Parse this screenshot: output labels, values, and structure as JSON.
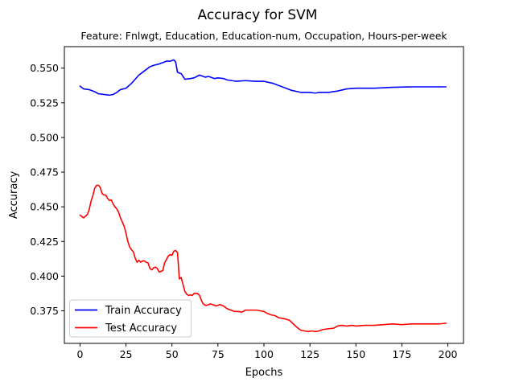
{
  "chart_data": {
    "type": "line",
    "title": "Accuracy for SVM",
    "subtitle": "Feature: Fnlwgt, Education, Education-num, Occupation, Hours-per-week",
    "xlabel": "Epochs",
    "ylabel": "Accuracy",
    "xlim": [
      -8.5,
      208.5
    ],
    "ylim": [
      0.3515,
      0.5655
    ],
    "xticks": [
      0,
      25,
      50,
      75,
      100,
      125,
      150,
      175,
      200
    ],
    "yticks": [
      0.375,
      0.4,
      0.425,
      0.45,
      0.475,
      0.5,
      0.525,
      0.55
    ],
    "xtick_labels": [
      "0",
      "25",
      "50",
      "75",
      "100",
      "125",
      "150",
      "175",
      "200"
    ],
    "ytick_labels": [
      "0.375",
      "0.400",
      "0.425",
      "0.450",
      "0.475",
      "0.500",
      "0.525",
      "0.550"
    ],
    "grid": false,
    "legend_position": "lower-left",
    "series": [
      {
        "name": "Train Accuracy",
        "color": "#0000ff",
        "points": [
          [
            0,
            0.537
          ],
          [
            2,
            0.535
          ],
          [
            5,
            0.5345
          ],
          [
            8,
            0.533
          ],
          [
            10,
            0.5315
          ],
          [
            13,
            0.531
          ],
          [
            16,
            0.5305
          ],
          [
            18,
            0.531
          ],
          [
            20,
            0.5325
          ],
          [
            22,
            0.5345
          ],
          [
            25,
            0.5355
          ],
          [
            28,
            0.539
          ],
          [
            30,
            0.542
          ],
          [
            32,
            0.545
          ],
          [
            35,
            0.548
          ],
          [
            38,
            0.551
          ],
          [
            40,
            0.552
          ],
          [
            43,
            0.553
          ],
          [
            45,
            0.554
          ],
          [
            47,
            0.555
          ],
          [
            49,
            0.555
          ],
          [
            51,
            0.556
          ],
          [
            52,
            0.5545
          ],
          [
            53,
            0.547
          ],
          [
            55,
            0.546
          ],
          [
            57,
            0.542
          ],
          [
            60,
            0.5425
          ],
          [
            62,
            0.543
          ],
          [
            65,
            0.545
          ],
          [
            68,
            0.5435
          ],
          [
            70,
            0.544
          ],
          [
            73,
            0.5425
          ],
          [
            75,
            0.543
          ],
          [
            78,
            0.5425
          ],
          [
            80,
            0.5415
          ],
          [
            85,
            0.5405
          ],
          [
            90,
            0.541
          ],
          [
            95,
            0.5405
          ],
          [
            100,
            0.5405
          ],
          [
            105,
            0.539
          ],
          [
            110,
            0.5365
          ],
          [
            115,
            0.534
          ],
          [
            120,
            0.5325
          ],
          [
            125,
            0.5325
          ],
          [
            128,
            0.532
          ],
          [
            130,
            0.5325
          ],
          [
            135,
            0.5325
          ],
          [
            140,
            0.5335
          ],
          [
            145,
            0.535
          ],
          [
            150,
            0.5355
          ],
          [
            160,
            0.5355
          ],
          [
            170,
            0.5362
          ],
          [
            180,
            0.5365
          ],
          [
            190,
            0.5365
          ],
          [
            199,
            0.5365
          ]
        ]
      },
      {
        "name": "Test Accuracy",
        "color": "#ff0000",
        "points": [
          [
            0,
            0.444
          ],
          [
            2,
            0.442
          ],
          [
            4,
            0.4445
          ],
          [
            5,
            0.448
          ],
          [
            6,
            0.454
          ],
          [
            7,
            0.458
          ],
          [
            8,
            0.4635
          ],
          [
            9,
            0.4655
          ],
          [
            10,
            0.4655
          ],
          [
            11,
            0.464
          ],
          [
            12,
            0.4595
          ],
          [
            13,
            0.4585
          ],
          [
            14,
            0.4585
          ],
          [
            15,
            0.456
          ],
          [
            16,
            0.4545
          ],
          [
            17,
            0.455
          ],
          [
            18,
            0.452
          ],
          [
            19,
            0.45
          ],
          [
            20,
            0.4485
          ],
          [
            21,
            0.446
          ],
          [
            22,
            0.442
          ],
          [
            23,
            0.439
          ],
          [
            24,
            0.436
          ],
          [
            25,
            0.431
          ],
          [
            26,
            0.425
          ],
          [
            27,
            0.421
          ],
          [
            28,
            0.419
          ],
          [
            29,
            0.4175
          ],
          [
            30,
            0.413
          ],
          [
            31,
            0.41
          ],
          [
            32,
            0.4115
          ],
          [
            33,
            0.41
          ],
          [
            34,
            0.411
          ],
          [
            35,
            0.411
          ],
          [
            36,
            0.41
          ],
          [
            37,
            0.4095
          ],
          [
            38,
            0.4055
          ],
          [
            39,
            0.4045
          ],
          [
            40,
            0.406
          ],
          [
            41,
            0.4065
          ],
          [
            42,
            0.4055
          ],
          [
            43,
            0.403
          ],
          [
            44,
            0.4035
          ],
          [
            45,
            0.404
          ],
          [
            46,
            0.4095
          ],
          [
            47,
            0.412
          ],
          [
            48,
            0.4145
          ],
          [
            49,
            0.4155
          ],
          [
            50,
            0.415
          ],
          [
            51,
            0.418
          ],
          [
            52,
            0.4185
          ],
          [
            53,
            0.417
          ],
          [
            54,
            0.398
          ],
          [
            55,
            0.399
          ],
          [
            56,
            0.394
          ],
          [
            57,
            0.389
          ],
          [
            58,
            0.387
          ],
          [
            59,
            0.386
          ],
          [
            60,
            0.3865
          ],
          [
            61,
            0.386
          ],
          [
            62,
            0.3875
          ],
          [
            63,
            0.3875
          ],
          [
            64,
            0.3875
          ],
          [
            65,
            0.386
          ],
          [
            66,
            0.3825
          ],
          [
            67,
            0.38
          ],
          [
            68,
            0.379
          ],
          [
            69,
            0.379
          ],
          [
            70,
            0.3795
          ],
          [
            71,
            0.38
          ],
          [
            72,
            0.3795
          ],
          [
            74,
            0.3785
          ],
          [
            76,
            0.3795
          ],
          [
            78,
            0.3785
          ],
          [
            80,
            0.3765
          ],
          [
            82,
            0.3755
          ],
          [
            84,
            0.3745
          ],
          [
            86,
            0.3745
          ],
          [
            88,
            0.374
          ],
          [
            90,
            0.3755
          ],
          [
            92,
            0.3755
          ],
          [
            94,
            0.3755
          ],
          [
            96,
            0.3755
          ],
          [
            98,
            0.375
          ],
          [
            100,
            0.3745
          ],
          [
            102,
            0.373
          ],
          [
            104,
            0.372
          ],
          [
            106,
            0.3715
          ],
          [
            108,
            0.37
          ],
          [
            110,
            0.3695
          ],
          [
            112,
            0.369
          ],
          [
            114,
            0.368
          ],
          [
            116,
            0.3655
          ],
          [
            118,
            0.363
          ],
          [
            120,
            0.361
          ],
          [
            122,
            0.3605
          ],
          [
            124,
            0.36
          ],
          [
            126,
            0.3605
          ],
          [
            128,
            0.36
          ],
          [
            130,
            0.3605
          ],
          [
            132,
            0.3615
          ],
          [
            135,
            0.362
          ],
          [
            138,
            0.3625
          ],
          [
            140,
            0.364
          ],
          [
            142,
            0.3645
          ],
          [
            145,
            0.364
          ],
          [
            148,
            0.3645
          ],
          [
            150,
            0.364
          ],
          [
            155,
            0.3645
          ],
          [
            160,
            0.3645
          ],
          [
            165,
            0.365
          ],
          [
            170,
            0.3655
          ],
          [
            175,
            0.365
          ],
          [
            180,
            0.3655
          ],
          [
            185,
            0.3655
          ],
          [
            190,
            0.3655
          ],
          [
            195,
            0.3655
          ],
          [
            199,
            0.366
          ]
        ]
      }
    ]
  }
}
